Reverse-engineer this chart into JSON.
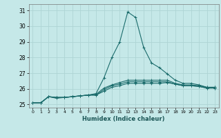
{
  "title": "",
  "xlabel": "Humidex (Indice chaleur)",
  "bg_color": "#c5e8e8",
  "grid_color": "#aed4d4",
  "line_color": "#1a6b6b",
  "xlim": [
    -0.5,
    23.5
  ],
  "ylim": [
    24.8,
    31.4
  ],
  "yticks": [
    25,
    26,
    27,
    28,
    29,
    30,
    31
  ],
  "xticks": [
    0,
    1,
    2,
    3,
    4,
    5,
    6,
    7,
    8,
    9,
    10,
    11,
    12,
    13,
    14,
    15,
    16,
    17,
    18,
    19,
    20,
    21,
    22,
    23
  ],
  "series": [
    [
      25.1,
      25.1,
      25.5,
      25.4,
      25.45,
      25.5,
      25.55,
      25.6,
      25.7,
      26.7,
      28.0,
      29.0,
      30.9,
      30.55,
      28.65,
      27.65,
      27.35,
      26.95,
      26.55,
      26.35,
      26.35,
      26.25,
      26.1,
      26.1
    ],
    [
      25.1,
      25.1,
      25.5,
      25.45,
      25.45,
      25.5,
      25.55,
      25.6,
      25.65,
      26.05,
      26.25,
      26.4,
      26.55,
      26.55,
      26.55,
      26.55,
      26.55,
      26.55,
      26.35,
      26.25,
      26.25,
      26.2,
      26.1,
      26.1
    ],
    [
      25.1,
      25.1,
      25.5,
      25.45,
      25.45,
      25.5,
      25.55,
      25.6,
      25.6,
      25.95,
      26.2,
      26.3,
      26.45,
      26.45,
      26.45,
      26.45,
      26.45,
      26.45,
      26.3,
      26.2,
      26.2,
      26.15,
      26.05,
      26.05
    ],
    [
      25.1,
      25.1,
      25.5,
      25.45,
      25.45,
      25.5,
      25.55,
      25.6,
      25.6,
      25.85,
      26.1,
      26.2,
      26.35,
      26.35,
      26.35,
      26.35,
      26.35,
      26.4,
      26.3,
      26.2,
      26.2,
      26.15,
      26.05,
      26.05
    ]
  ]
}
